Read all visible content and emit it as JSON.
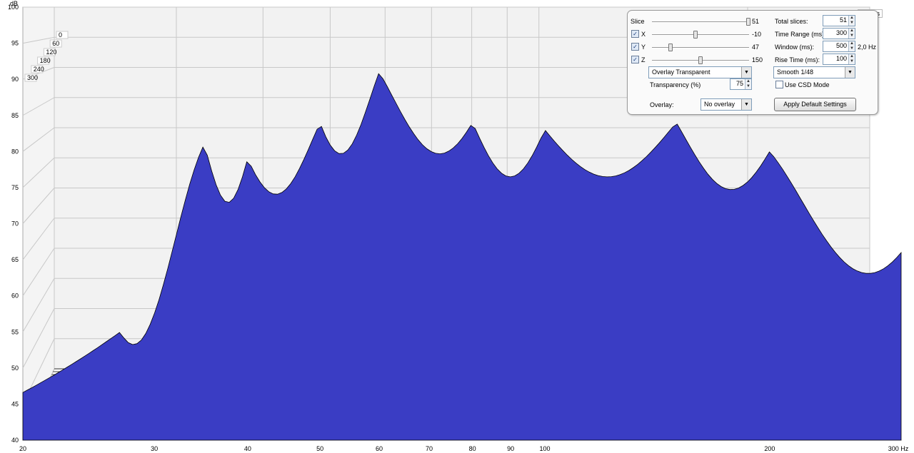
{
  "chart_data": {
    "type": "area",
    "title": "",
    "ylabel": "dB",
    "xunit": "Hz",
    "xscale": "log",
    "xlim": [
      20,
      300
    ],
    "ylim": [
      40,
      100
    ],
    "x_ticks": [
      "20",
      "30",
      "40",
      "50",
      "60",
      "70",
      "80",
      "90",
      "100",
      "200",
      "300 Hz"
    ],
    "y_ticks": [
      "100",
      "95",
      "90",
      "85",
      "80",
      "75",
      "70",
      "65",
      "60",
      "55",
      "50",
      "45",
      "40"
    ],
    "depth_ticks": [
      "0",
      "60",
      "120",
      "180",
      "240",
      "300"
    ],
    "depth_label_end": "300ms",
    "slices": 51,
    "front_slice_peaks": [
      {
        "hz": 27,
        "db": 55
      },
      {
        "hz": 35,
        "db": 81
      },
      {
        "hz": 40,
        "db": 79
      },
      {
        "hz": 50,
        "db": 84
      },
      {
        "hz": 60,
        "db": 91
      },
      {
        "hz": 80,
        "db": 84
      },
      {
        "hz": 100,
        "db": 83
      },
      {
        "hz": 150,
        "db": 84
      },
      {
        "hz": 200,
        "db": 80
      },
      {
        "hz": 300,
        "db": 66
      }
    ],
    "colors": {
      "fill": "#3a3dc4",
      "line": "#000000",
      "grid": "#c8c8c8",
      "wall": "#f2f2f2"
    }
  },
  "controls": {
    "slice_label": "Slice",
    "slice_value": "51",
    "x_label": "X",
    "x_value": "-10",
    "y_label": "Y",
    "y_value": "47",
    "z_label": "Z",
    "z_value": "150",
    "total_slices_label": "Total slices:",
    "total_slices_value": "51",
    "time_range_label": "Time Range (ms):",
    "time_range_value": "300",
    "window_label": "Window (ms):",
    "window_value": "500",
    "window_resolution": "2,0 Hz",
    "rise_time_label": "Rise Time (ms):",
    "rise_time_value": "100",
    "mode_select": "Overlay Transparent",
    "smooth_select": "Smooth 1/48",
    "transparency_label": "Transparency (%)",
    "transparency_value": "75",
    "csd_mode_label": "Use CSD Mode",
    "overlay_label": "Overlay:",
    "overlay_select": "No overlay",
    "apply_defaults_label": "Apply Default Settings"
  }
}
